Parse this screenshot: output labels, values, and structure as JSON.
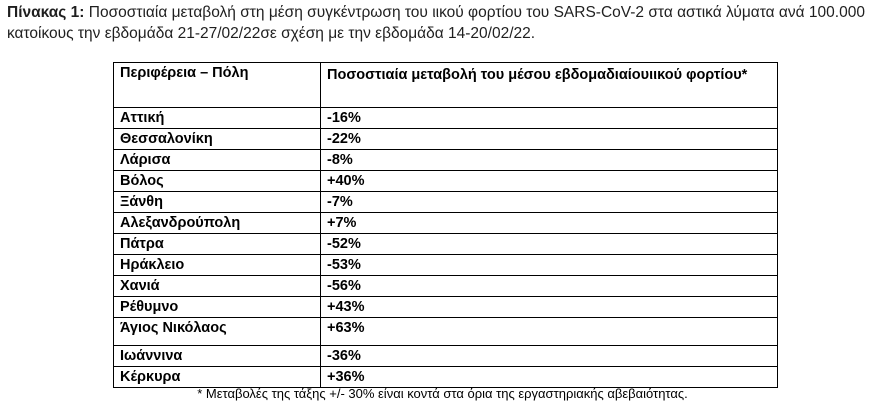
{
  "caption": {
    "label": "Πίνακας 1:",
    "text": " Ποσοστιαία μεταβολή στη μέση συγκέντρωση του ιικού φορτίου του SARS-CoV-2 στα αστικά λύματα ανά 100.000 κατοίκους την εβδομάδα 21-27/02/22σε σχέση με την εβδομάδα 14-20/02/22."
  },
  "table": {
    "headers": {
      "region": "Περιφέρεια – Πόλη",
      "change": "Ποσοστιαία μεταβολή του μέσου εβδομαδιαίουιικού φορτίου*"
    },
    "rows": [
      {
        "region": "Αττική",
        "change": "-16%"
      },
      {
        "region": "Θεσσαλονίκη",
        "change": "-22%"
      },
      {
        "region": "Λάρισα",
        "change": "-8%"
      },
      {
        "region": "Βόλος",
        "change": "+40%"
      },
      {
        "region": "Ξάνθη",
        "change": "-7%"
      },
      {
        "region": "Αλεξανδρούπολη",
        "change": "+7%"
      },
      {
        "region": "Πάτρα",
        "change": "-52%"
      },
      {
        "region": "Ηράκλειο",
        "change": "-53%"
      },
      {
        "region": "Χανιά",
        "change": "-56%"
      },
      {
        "region": "Ρέθυμνο",
        "change": "+43%"
      },
      {
        "region": "Άγιος Νικόλαος",
        "change": "+63%"
      },
      {
        "region": "Ιωάννινα",
        "change": "-36%"
      },
      {
        "region": "Κέρκυρα",
        "change": "+36%"
      }
    ]
  },
  "footnote": "* Μεταβολές της τάξης +/- 30% είναι κοντά στα όρια της εργαστηριακής αβεβαιότητας."
}
